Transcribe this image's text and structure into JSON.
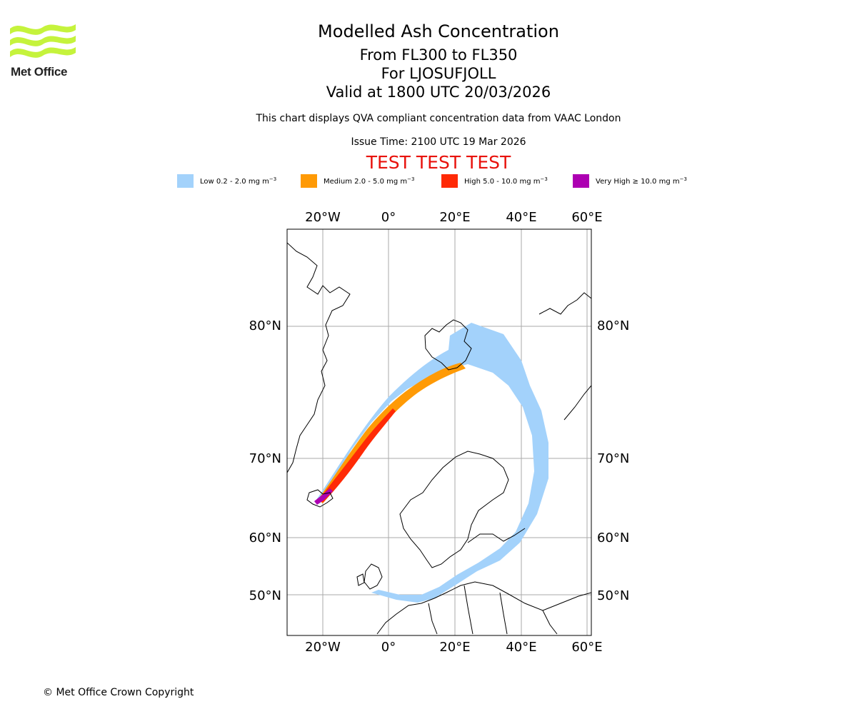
{
  "logo": {
    "name": "Met Office"
  },
  "title": "Modelled Ash Concentration",
  "flight_levels": "From FL300 to FL350",
  "volcano": "For LJOSUFJOLL",
  "valid_time": "Valid at 1800 UTC 20/03/2026",
  "note": "This chart displays QVA compliant concentration data from VAAC London",
  "issue_time": "Issue Time: 2100 UTC 19 Mar 2026",
  "test_banner": "TEST TEST TEST",
  "legend": [
    {
      "label": "Low 0.2 - 2.0 mg m",
      "exp": "−3",
      "color": "#a3d2fb"
    },
    {
      "label": "Medium 2.0 - 5.0 mg m",
      "exp": "−3",
      "color": "#ff9a05"
    },
    {
      "label": "High 5.0 - 10.0 mg m",
      "exp": "−3",
      "color": "#ff2a06"
    },
    {
      "label": "Very High  ≥  10.0 mg m",
      "exp": "−3",
      "color": "#ad00b2"
    }
  ],
  "axes": {
    "lon_ticks": [
      "20°W",
      "0°",
      "20°E",
      "40°E",
      "60°E"
    ],
    "lat_ticks": [
      "80°N",
      "70°N",
      "60°N",
      "50°N"
    ]
  },
  "copyright": "© Met Office Crown Copyright"
}
